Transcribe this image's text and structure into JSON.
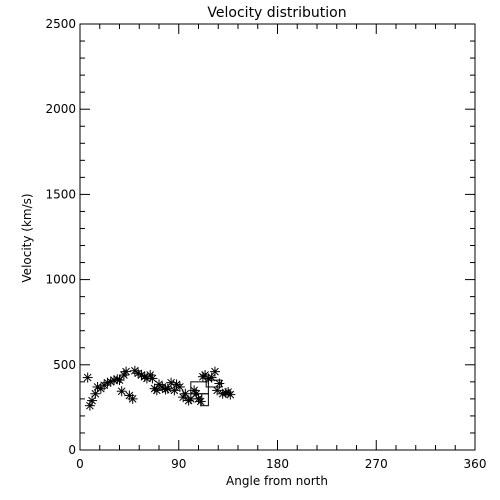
{
  "chart_data": {
    "type": "scatter",
    "title": "Velocity distribution",
    "xlabel": "Angle from north",
    "ylabel": "Velocity (km/s)",
    "xlim": [
      0,
      360
    ],
    "ylim": [
      0,
      2500
    ],
    "xticks": [
      0,
      90,
      180,
      270,
      360
    ],
    "yticks": [
      0,
      500,
      1000,
      1500,
      2000,
      2500
    ],
    "grid": false,
    "marker": "asterisk",
    "points": [
      [
        7,
        425
      ],
      [
        9,
        260
      ],
      [
        11,
        290
      ],
      [
        14,
        330
      ],
      [
        16,
        370
      ],
      [
        19,
        360
      ],
      [
        22,
        380
      ],
      [
        25,
        395
      ],
      [
        28,
        400
      ],
      [
        31,
        410
      ],
      [
        34,
        415
      ],
      [
        36,
        410
      ],
      [
        38,
        345
      ],
      [
        40,
        440
      ],
      [
        42,
        460
      ],
      [
        45,
        320
      ],
      [
        48,
        300
      ],
      [
        50,
        465
      ],
      [
        53,
        450
      ],
      [
        56,
        440
      ],
      [
        59,
        430
      ],
      [
        61,
        420
      ],
      [
        64,
        440
      ],
      [
        66,
        420
      ],
      [
        68,
        360
      ],
      [
        70,
        350
      ],
      [
        72,
        385
      ],
      [
        75,
        370
      ],
      [
        78,
        355
      ],
      [
        80,
        360
      ],
      [
        83,
        395
      ],
      [
        86,
        350
      ],
      [
        88,
        385
      ],
      [
        91,
        370
      ],
      [
        94,
        310
      ],
      [
        96,
        330
      ],
      [
        99,
        290
      ],
      [
        101,
        300
      ],
      [
        104,
        350
      ],
      [
        106,
        330
      ],
      [
        108,
        300
      ],
      [
        110,
        285
      ],
      [
        112,
        430
      ],
      [
        114,
        440
      ],
      [
        117,
        420
      ],
      [
        120,
        425
      ],
      [
        123,
        460
      ],
      [
        125,
        350
      ],
      [
        127,
        390
      ],
      [
        130,
        330
      ],
      [
        133,
        335
      ],
      [
        135,
        340
      ],
      [
        137,
        325
      ]
    ],
    "boxes": [
      {
        "x_range": [
          101,
          117
        ],
        "y_range": [
          330,
          400
        ]
      },
      {
        "x_range": [
          111,
          117
        ],
        "y_range": [
          260,
          330
        ]
      },
      {
        "x_range": [
          115,
          129
        ],
        "y_range": [
          370,
          410
        ]
      }
    ]
  }
}
